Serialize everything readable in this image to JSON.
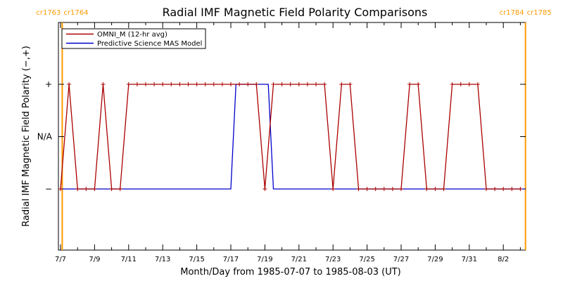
{
  "chart_data": {
    "type": "line",
    "title": "Radial IMF Magnetic Field Polarity Comparisons",
    "xlabel": "Month/Day from 1985-07-07 to 1985-08-03 (UT)",
    "ylabel": "Radial IMF Magnetic Field Polarity (−,+)",
    "x_tick_labels": [
      "7/7",
      "7/9",
      "7/11",
      "7/13",
      "7/15",
      "7/17",
      "7/19",
      "7/21",
      "7/23",
      "7/25",
      "7/27",
      "7/29",
      "7/31",
      "8/2"
    ],
    "x_tick_days": [
      0,
      2,
      4,
      6,
      8,
      10,
      12,
      14,
      16,
      18,
      20,
      22,
      24,
      26
    ],
    "xlim_days": [
      0,
      27.4
    ],
    "y_tick_labels": [
      "+",
      "N/A",
      "−"
    ],
    "y_tick_values": [
      1,
      0,
      -1
    ],
    "ylim": [
      -1.5,
      2
    ],
    "carrington_rotations": [
      {
        "left": "cr1763",
        "right": "cr1764",
        "day": 0.1
      },
      {
        "left": "cr1784",
        "right": "cr1785",
        "day": 27.3
      }
    ],
    "series": [
      {
        "name": "OMNI_M (12-hr avg)",
        "color": "#aa0000",
        "marker": "+",
        "x": [
          0,
          0.5,
          1,
          1.5,
          2,
          2.5,
          3,
          3.5,
          4,
          4.5,
          5,
          5.5,
          6,
          6.5,
          7,
          7.5,
          8,
          8.5,
          9,
          9.5,
          10,
          10.5,
          11,
          11.5,
          12,
          12.5,
          13,
          13.5,
          14,
          14.5,
          15,
          15.5,
          16,
          16.5,
          17,
          17.5,
          18,
          18.5,
          19,
          19.5,
          20,
          20.5,
          21,
          21.5,
          22,
          22.5,
          23,
          23.5,
          24,
          24.5,
          25,
          25.5,
          26,
          26.5,
          27
        ],
        "values": [
          -1,
          1,
          -1,
          -1,
          -1,
          1,
          -1,
          -1,
          1,
          1,
          1,
          1,
          1,
          1,
          1,
          1,
          1,
          1,
          1,
          1,
          1,
          1,
          1,
          1,
          -1,
          1,
          1,
          1,
          1,
          1,
          1,
          1,
          -1,
          1,
          1,
          -1,
          -1,
          -1,
          -1,
          -1,
          -1,
          1,
          1,
          -1,
          -1,
          -1,
          1,
          1,
          1,
          1,
          -1,
          -1,
          -1,
          -1,
          -1
        ]
      },
      {
        "name": "Predictive Science MAS Model",
        "color": "#0000cc",
        "x": [
          0,
          10,
          10.3,
          12.2,
          12.5,
          27.3
        ],
        "values": [
          -1,
          -1,
          1,
          1,
          -1,
          -1
        ]
      }
    ]
  }
}
